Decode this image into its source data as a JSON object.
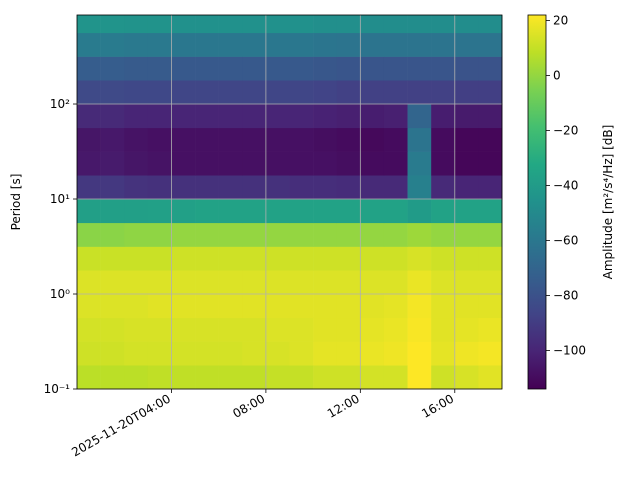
{
  "chart_data": {
    "type": "heatmap",
    "ylabel": "Period [s]",
    "colorbar_label": "Amplitude [m²/s⁴/Hz] [dB]",
    "xlim": [
      "2025-11-20T00:00",
      "2025-11-20T18:00"
    ],
    "xticks": [
      "2025-11-20T04:00",
      {
        "value": "2025-11-20T08:00",
        "label": "08:00"
      },
      {
        "value": "2025-11-20T12:00",
        "label": "12:00"
      },
      {
        "value": "2025-11-20T16:00",
        "label": "16:00"
      }
    ],
    "ylim": [
      0.1,
      865
    ],
    "ylog": true,
    "yticks": [
      {
        "value": 0.1,
        "label": "10⁻¹"
      },
      {
        "value": 1,
        "label": "10⁰"
      },
      {
        "value": 10,
        "label": "10¹"
      },
      {
        "value": 100,
        "label": "10²"
      }
    ],
    "grid": true,
    "clim": [
      -114,
      22
    ],
    "cticks": [
      {
        "value": -100,
        "label": "−100"
      },
      {
        "value": -80,
        "label": "−80"
      },
      {
        "value": -60,
        "label": "−60"
      },
      {
        "value": -40,
        "label": "−40"
      },
      {
        "value": -20,
        "label": "−20"
      },
      0,
      20
    ],
    "colormap": [
      "#440154",
      "#482475",
      "#414487",
      "#355f8d",
      "#2a788e",
      "#21918c",
      "#22a884",
      "#44bf70",
      "#7ad151",
      "#bddf26",
      "#fde725"
    ],
    "xbins": [
      "2025-11-20T00:00",
      "2025-11-20T01:00",
      "2025-11-20T02:00",
      "2025-11-20T03:00",
      "2025-11-20T04:00",
      "2025-11-20T05:00",
      "2025-11-20T06:00",
      "2025-11-20T07:00",
      "2025-11-20T08:00",
      "2025-11-20T09:00",
      "2025-11-20T10:00",
      "2025-11-20T11:00",
      "2025-11-20T12:00",
      "2025-11-20T13:00",
      "2025-11-20T14:00",
      "2025-11-20T15:00",
      "2025-11-20T16:00",
      "2025-11-20T17:00",
      "2025-11-20T18:00"
    ],
    "ybins": [
      0.1,
      0.178,
      0.316,
      0.562,
      1,
      1.78,
      3.16,
      5.62,
      10,
      17.8,
      31.6,
      56.2,
      100,
      178,
      316,
      562,
      865
    ],
    "values": [
      [
        8,
        8,
        8,
        9,
        9,
        9,
        9,
        9,
        10,
        10,
        12,
        12,
        13,
        13,
        22,
        12,
        14,
        16
      ],
      [
        12,
        12,
        13,
        13,
        13,
        13,
        13,
        14,
        14,
        15,
        17,
        17,
        18,
        19,
        22,
        17,
        19,
        20
      ],
      [
        13,
        13,
        14,
        14,
        14,
        14,
        14,
        14,
        15,
        15,
        16,
        16,
        17,
        18,
        21,
        16,
        17,
        18
      ],
      [
        15,
        15,
        15,
        16,
        16,
        16,
        16,
        16,
        16,
        16,
        16,
        16,
        16,
        17,
        20,
        16,
        16,
        16
      ],
      [
        15,
        15,
        15,
        15,
        15,
        15,
        15,
        15,
        15,
        15,
        15,
        15,
        15,
        15,
        18,
        15,
        15,
        15
      ],
      [
        11,
        11,
        11,
        11,
        12,
        12,
        12,
        12,
        12,
        12,
        12,
        12,
        12,
        12,
        14,
        12,
        12,
        12
      ],
      [
        -2,
        -2,
        -1,
        -1,
        0,
        0,
        0,
        0,
        0,
        0,
        0,
        0,
        0,
        0,
        2,
        0,
        0,
        0
      ],
      [
        -38,
        -38,
        -38,
        -37,
        -37,
        -36,
        -36,
        -36,
        -36,
        -36,
        -36,
        -36,
        -36,
        -36,
        -40,
        -36,
        -36,
        -36
      ],
      [
        -92,
        -92,
        -94,
        -95,
        -95,
        -95,
        -95,
        -95,
        -95,
        -96,
        -96,
        -97,
        -98,
        -98,
        -55,
        -98,
        -100,
        -100
      ],
      [
        -105,
        -104,
        -106,
        -107,
        -108,
        -108,
        -108,
        -108,
        -108,
        -108,
        -108,
        -109,
        -110,
        -110,
        -58,
        -110,
        -112,
        -112
      ],
      [
        -106,
        -105,
        -107,
        -108,
        -108,
        -108,
        -108,
        -108,
        -108,
        -108,
        -109,
        -110,
        -111,
        -110,
        -62,
        -110,
        -112,
        -112
      ],
      [
        -98,
        -98,
        -100,
        -100,
        -100,
        -100,
        -100,
        -100,
        -100,
        -100,
        -101,
        -102,
        -103,
        -102,
        -70,
        -103,
        -104,
        -104
      ],
      [
        -84,
        -84,
        -85,
        -85,
        -86,
        -86,
        -86,
        -86,
        -86,
        -86,
        -87,
        -88,
        -88,
        -88,
        -88,
        -88,
        -89,
        -89
      ],
      [
        -74,
        -74,
        -75,
        -75,
        -76,
        -76,
        -76,
        -76,
        -76,
        -76,
        -77,
        -78,
        -78,
        -78,
        -78,
        -78,
        -79,
        -79
      ],
      [
        -58,
        -58,
        -59,
        -59,
        -60,
        -60,
        -60,
        -60,
        -60,
        -60,
        -61,
        -62,
        -62,
        -62,
        -62,
        -62,
        -62,
        -62
      ],
      [
        -44,
        -44,
        -45,
        -45,
        -46,
        -46,
        -46,
        -46,
        -46,
        -46,
        -47,
        -47,
        -48,
        -48,
        -48,
        -48,
        -48,
        -48
      ]
    ]
  }
}
